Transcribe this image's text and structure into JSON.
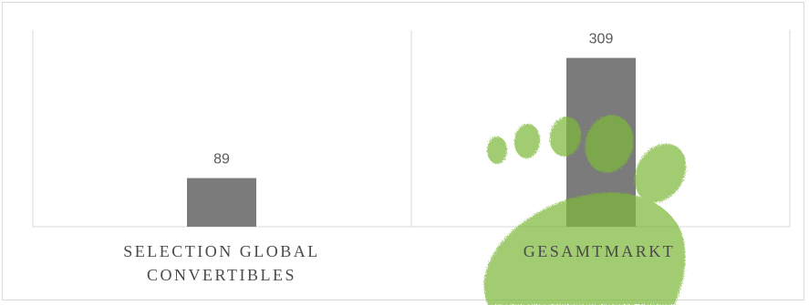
{
  "chart_data": {
    "type": "bar",
    "categories": [
      [
        "SELECTION GLOBAL",
        "CONVERTIBLES"
      ],
      [
        "GESAMTMARKT"
      ]
    ],
    "values": [
      89,
      309
    ],
    "data_labels": [
      "89",
      "309"
    ],
    "ylim": [
      0,
      360
    ],
    "grid": false,
    "legend": "none",
    "title": "",
    "xlabel": "",
    "ylabel": ""
  },
  "colors": {
    "bar": "#7b7b7b",
    "axis": "#d9d9d9",
    "footprint": "#7fb93a"
  },
  "decoration": {
    "watermark_icon": "footprint-icon"
  }
}
